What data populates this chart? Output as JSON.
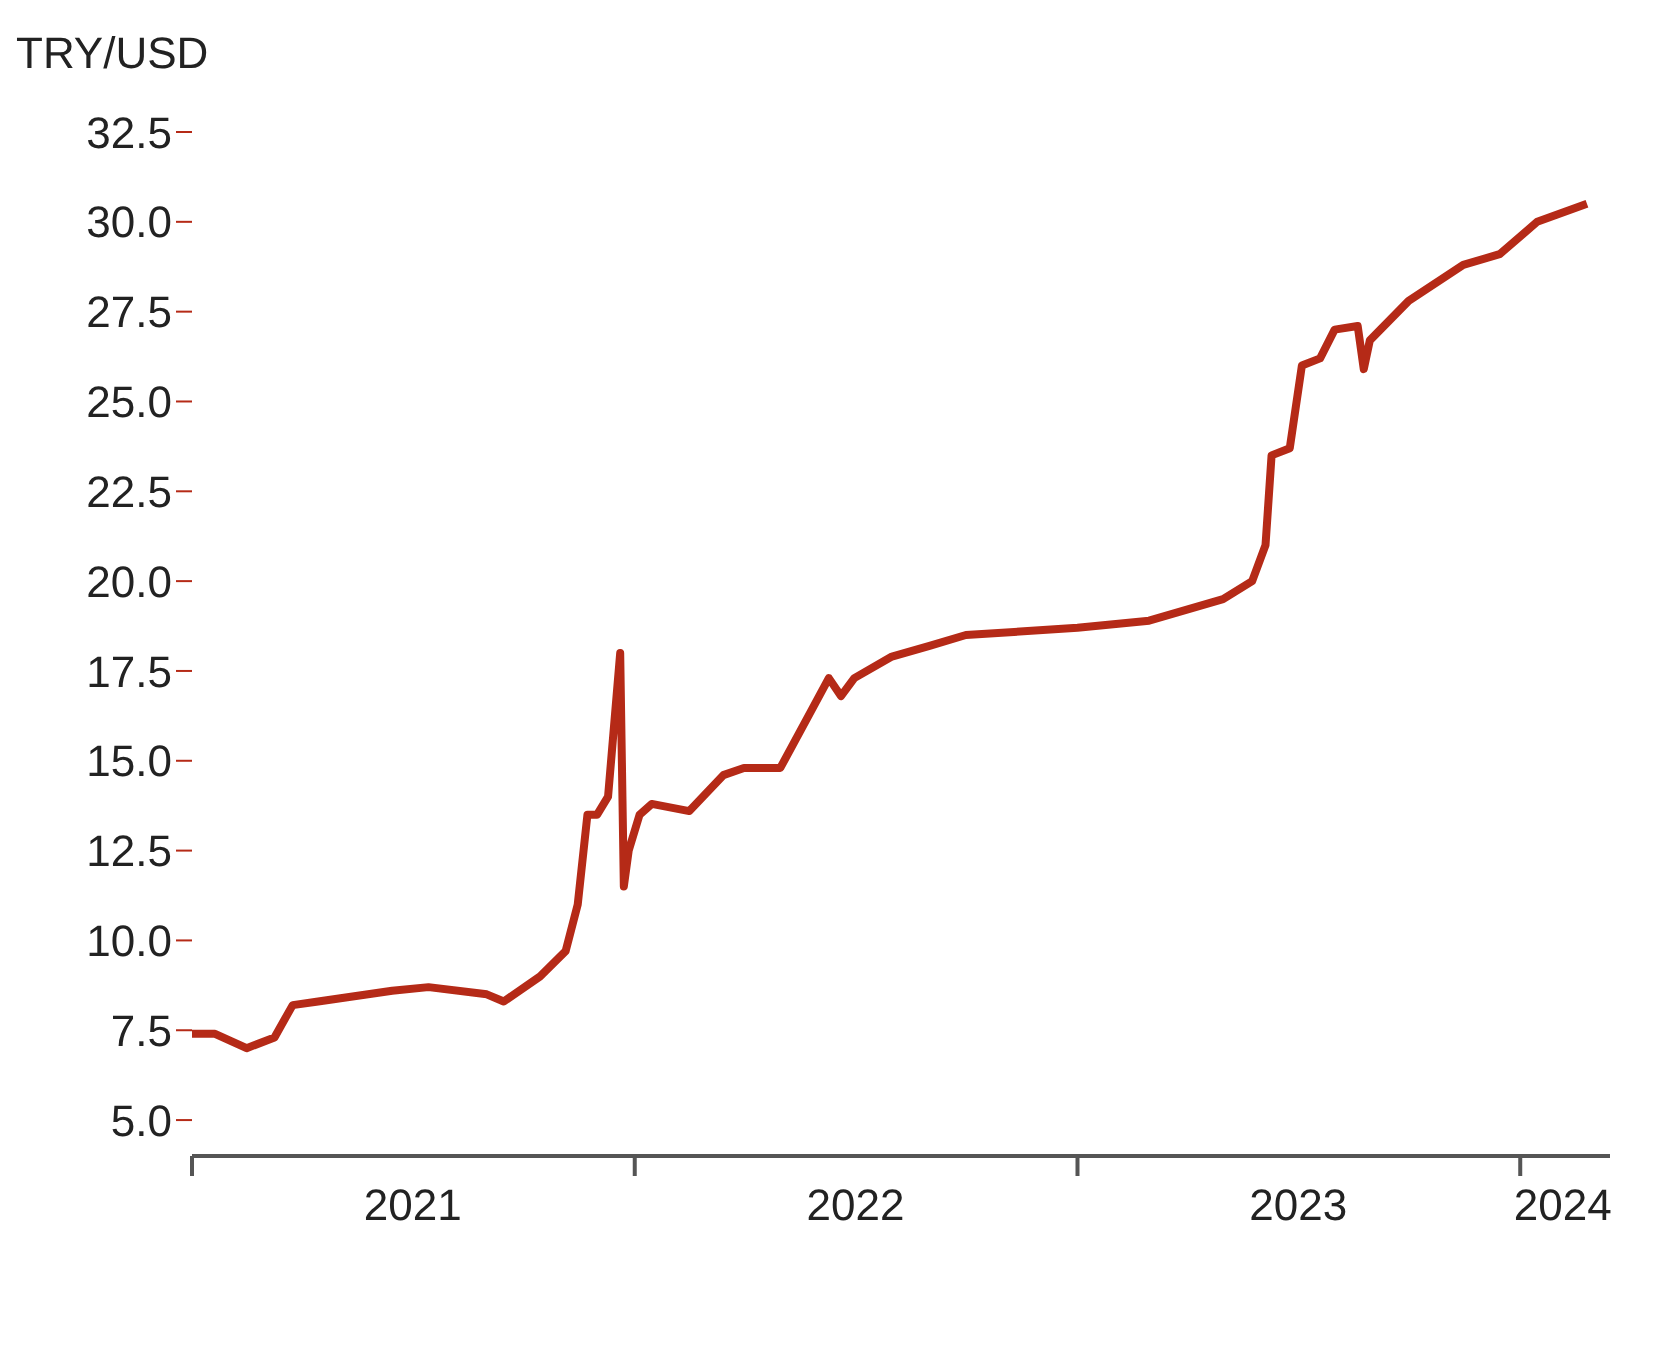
{
  "chart_data": {
    "type": "line",
    "ylabel": "TRY/USD",
    "ylim": [
      4,
      32.5
    ],
    "yticks": [
      {
        "value": 5,
        "label": "5.0"
      },
      {
        "value": 7.5,
        "label": "7.5"
      },
      {
        "value": 10,
        "label": "10.0"
      },
      {
        "value": 12.5,
        "label": "12.5"
      },
      {
        "value": 15,
        "label": "15.0"
      },
      {
        "value": 17.5,
        "label": "17.5"
      },
      {
        "value": 20,
        "label": "20.0"
      },
      {
        "value": 22.5,
        "label": "22.5"
      },
      {
        "value": 25,
        "label": "25.0"
      },
      {
        "value": 27.5,
        "label": "27.5"
      },
      {
        "value": 30,
        "label": "30.0"
      },
      {
        "value": 32.5,
        "label": "32.5"
      }
    ],
    "xlim": [
      "2021-01-01",
      "2024-03-15"
    ],
    "xticks": [
      {
        "value": "2021-01-01",
        "label": null
      },
      {
        "value": "2021-07-02",
        "label": "2021"
      },
      {
        "value": "2022-01-01",
        "label": null
      },
      {
        "value": "2022-07-02",
        "label": "2022"
      },
      {
        "value": "2023-01-01",
        "label": null
      },
      {
        "value": "2023-07-02",
        "label": "2023"
      },
      {
        "value": "2024-01-01",
        "label": null
      },
      {
        "value": "2024-02-05",
        "label": "2024"
      }
    ],
    "grid": false,
    "marker": "none",
    "line_style": "solid",
    "x": [
      "2021-01-01",
      "2021-01-20",
      "2021-02-15",
      "2021-03-10",
      "2021-03-20",
      "2021-03-25",
      "2021-04-15",
      "2021-06-15",
      "2021-07-15",
      "2021-09-01",
      "2021-09-15",
      "2021-10-15",
      "2021-11-05",
      "2021-11-15",
      "2021-11-23",
      "2021-12-01",
      "2021-12-10",
      "2021-12-20",
      "2021-12-23",
      "2021-12-27",
      "2022-01-05",
      "2022-01-15",
      "2022-02-15",
      "2022-03-15",
      "2022-04-01",
      "2022-05-01",
      "2022-05-25",
      "2022-06-10",
      "2022-06-20",
      "2022-07-01",
      "2022-08-01",
      "2022-09-01",
      "2022-10-01",
      "2023-01-01",
      "2023-03-01",
      "2023-05-01",
      "2023-05-25",
      "2023-06-05",
      "2023-06-10",
      "2023-06-25",
      "2023-07-05",
      "2023-07-20",
      "2023-08-01",
      "2023-08-20",
      "2023-08-25",
      "2023-08-30",
      "2023-10-01",
      "2023-11-15",
      "2023-12-15",
      "2024-01-15",
      "2024-02-25"
    ],
    "series": [
      {
        "color": "#b52a17",
        "values": [
          7.4,
          7.4,
          7.0,
          7.3,
          7.9,
          8.2,
          8.3,
          8.6,
          8.7,
          8.5,
          8.3,
          9.0,
          9.7,
          11,
          13.5,
          13.5,
          14,
          18,
          11.5,
          12.5,
          13.5,
          13.8,
          13.6,
          14.6,
          14.8,
          14.8,
          16.3,
          17.3,
          16.8,
          17.3,
          17.9,
          18.2,
          18.5,
          18.7,
          18.9,
          19.5,
          20.0,
          21,
          23.5,
          23.7,
          26,
          26.2,
          27,
          27.1,
          25.9,
          26.7,
          27.8,
          28.8,
          29.1,
          30.0,
          30.5
        ]
      }
    ]
  }
}
